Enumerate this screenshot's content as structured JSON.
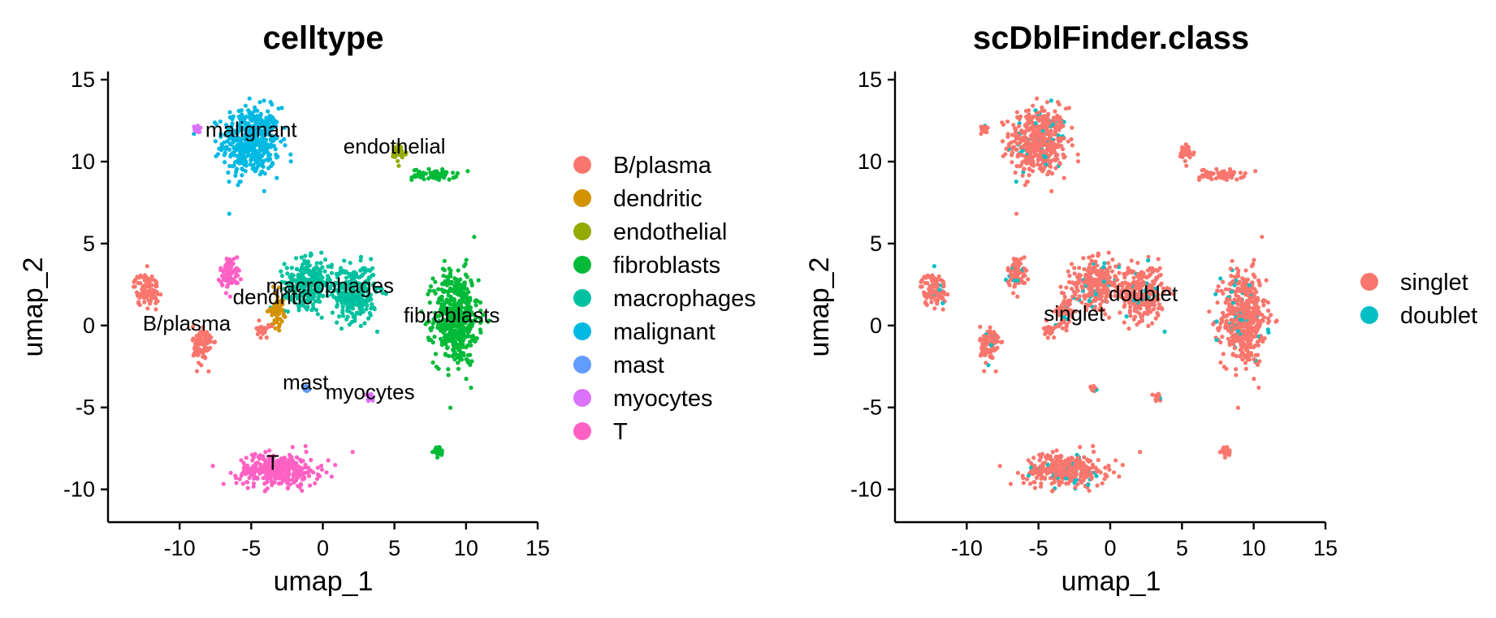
{
  "chart_data": [
    {
      "type": "scatter",
      "title": "celltype",
      "xlabel": "umap_1",
      "ylabel": "umap_2",
      "xlim": [
        -15,
        15
      ],
      "ylim": [
        -12,
        15.5
      ],
      "xticks": [
        -10,
        -5,
        0,
        5,
        10,
        15
      ],
      "yticks": [
        -10,
        -5,
        0,
        5,
        10,
        15
      ],
      "grid": false,
      "legend_position": "right",
      "legend": [
        {
          "label": "B/plasma",
          "color": "#F8766D"
        },
        {
          "label": "dendritic",
          "color": "#D39200"
        },
        {
          "label": "endothelial",
          "color": "#93AA00"
        },
        {
          "label": "fibroblasts",
          "color": "#00BA38"
        },
        {
          "label": "macrophages",
          "color": "#00C19F"
        },
        {
          "label": "malignant",
          "color": "#00B9E3"
        },
        {
          "label": "mast",
          "color": "#619CFF"
        },
        {
          "label": "myocytes",
          "color": "#DB72FB"
        },
        {
          "label": "T",
          "color": "#FF61C3"
        }
      ],
      "cluster_labels": [
        {
          "text": "malignant",
          "x": -5,
          "y": 11.5
        },
        {
          "text": "endothelial",
          "x": 5,
          "y": 10.5
        },
        {
          "text": "macrophages",
          "x": 0.5,
          "y": 2
        },
        {
          "text": "dendritic",
          "x": -3.5,
          "y": 1.3
        },
        {
          "text": "B/plasma",
          "x": -9.5,
          "y": -0.3
        },
        {
          "text": "fibroblasts",
          "x": 9,
          "y": 0.2
        },
        {
          "text": "mast",
          "x": -1.2,
          "y": -3.9
        },
        {
          "text": "myocytes",
          "x": 3.3,
          "y": -4.5
        },
        {
          "text": "T",
          "x": -3.5,
          "y": -8.8
        }
      ],
      "clusters": [
        {
          "group": "malignant",
          "cx": -5,
          "cy": 11.2,
          "sx": 1.8,
          "sy": 1.9
        },
        {
          "group": "endothelial",
          "cx": 5.3,
          "cy": 10.5,
          "sx": 0.5,
          "sy": 0.5
        },
        {
          "group": "fibroblasts",
          "cx": 7.8,
          "cy": 9.2,
          "sx": 1.4,
          "sy": 0.3
        },
        {
          "group": "fibroblasts",
          "cx": 9.3,
          "cy": 0.5,
          "sx": 1.4,
          "sy": 2.6
        },
        {
          "group": "fibroblasts",
          "cx": 8.1,
          "cy": -7.7,
          "sx": 0.3,
          "sy": 0.3
        },
        {
          "group": "macrophages",
          "cx": -1,
          "cy": 2.6,
          "sx": 1.5,
          "sy": 1.3
        },
        {
          "group": "macrophages",
          "cx": 2.2,
          "cy": 2.0,
          "sx": 1.4,
          "sy": 1.5
        },
        {
          "group": "dendritic",
          "cx": -3.2,
          "cy": 1.0,
          "sx": 0.4,
          "sy": 1.0
        },
        {
          "group": "B/plasma",
          "cx": -12.3,
          "cy": 2.2,
          "sx": 0.8,
          "sy": 0.9
        },
        {
          "group": "B/plasma",
          "cx": -8.4,
          "cy": -1.2,
          "sx": 0.6,
          "sy": 1.1
        },
        {
          "group": "B/plasma",
          "cx": -4.2,
          "cy": -0.3,
          "sx": 0.4,
          "sy": 0.4
        },
        {
          "group": "T",
          "cx": -6.5,
          "cy": 3.2,
          "sx": 0.6,
          "sy": 0.9
        },
        {
          "group": "T",
          "cx": -3.1,
          "cy": -8.8,
          "sx": 2.6,
          "sy": 0.9
        },
        {
          "group": "mast",
          "cx": -1.2,
          "cy": -3.9,
          "sx": 0.2,
          "sy": 0.2
        },
        {
          "group": "myocytes",
          "cx": 3.3,
          "cy": -4.4,
          "sx": 0.3,
          "sy": 0.2
        },
        {
          "group": "myocytes",
          "cx": -8.8,
          "cy": 12.0,
          "sx": 0.2,
          "sy": 0.2
        }
      ]
    },
    {
      "type": "scatter",
      "title": "scDblFinder.class",
      "xlabel": "umap_1",
      "ylabel": "umap_2",
      "xlim": [
        -15,
        15
      ],
      "ylim": [
        -12,
        15.5
      ],
      "xticks": [
        -10,
        -5,
        0,
        5,
        10,
        15
      ],
      "yticks": [
        -10,
        -5,
        0,
        5,
        10,
        15
      ],
      "grid": false,
      "legend_position": "right",
      "legend": [
        {
          "label": "singlet",
          "color": "#F8766D"
        },
        {
          "label": "doublet",
          "color": "#00BFC4"
        }
      ],
      "cluster_labels": [
        {
          "text": "doublet",
          "x": 2.3,
          "y": 1.5
        },
        {
          "text": "singlet",
          "x": -2.5,
          "y": 0.3
        }
      ],
      "doublet_fraction": 0.08
    }
  ]
}
